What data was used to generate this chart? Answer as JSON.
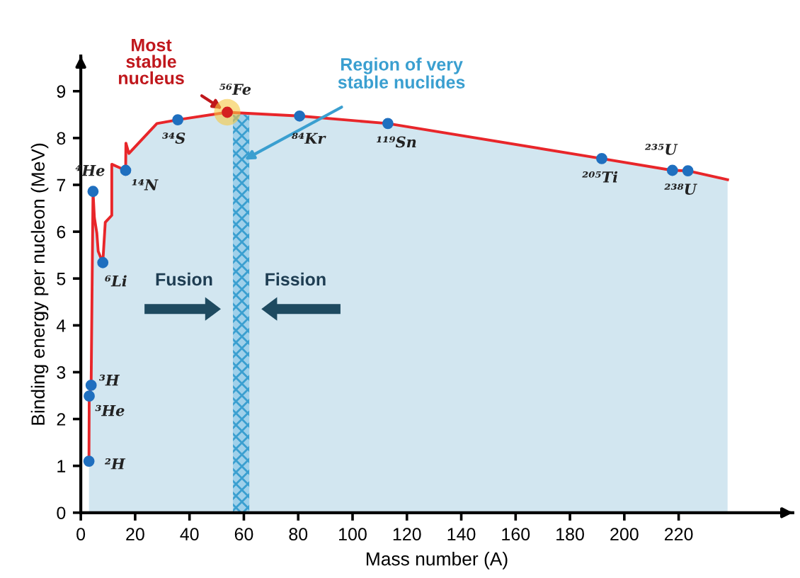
{
  "chart_data": {
    "type": "area",
    "xlabel": "Mass number (A)",
    "ylabel": "Binding energy per nucleon (MeV)",
    "xlim": [
      0,
      262
    ],
    "ylim": [
      0,
      9.75
    ],
    "xticks": [
      0,
      20,
      40,
      60,
      80,
      100,
      120,
      140,
      160,
      180,
      200,
      220
    ],
    "yticks": [
      0,
      1,
      2,
      3,
      4,
      5,
      6,
      7,
      8,
      9
    ],
    "grid": false,
    "series": [
      {
        "color": "#e8262a",
        "marker": "none",
        "x": [
          3.0,
          3.1,
          3.8,
          4.5,
          5.0,
          5.9,
          6.4,
          8.1,
          9.0,
          11.4,
          11.4,
          13.7,
          16.5,
          16.6,
          17.7,
          28,
          35.7,
          53.9,
          80.5,
          113,
          191.7,
          217.7,
          223.4,
          238
        ],
        "values": [
          1.1,
          2.49,
          2.72,
          6.86,
          6.3,
          5.97,
          5.58,
          5.34,
          6.2,
          6.35,
          7.44,
          7.38,
          7.31,
          7.89,
          7.67,
          8.31,
          8.39,
          8.55,
          8.47,
          8.31,
          7.56,
          7.31,
          7.3,
          7.11
        ]
      },
      {
        "type": "scatter",
        "marker": "circle",
        "color": "#1f6fbf",
        "colors": [
          null,
          null,
          null,
          null,
          null,
          null,
          null,
          "#d42020",
          null,
          null,
          null,
          null,
          null
        ],
        "x": [
          3.0,
          3.1,
          3.8,
          4.5,
          8.1,
          16.5,
          35.7,
          53.9,
          80.5,
          113,
          191.7,
          217.7,
          223.4
        ],
        "values": [
          1.1,
          2.49,
          2.72,
          6.86,
          5.34,
          7.31,
          8.39,
          8.55,
          8.47,
          8.31,
          7.56,
          7.31,
          7.3
        ]
      }
    ],
    "bands": [
      {
        "axis": "x",
        "from": 56,
        "to": 62,
        "label": "Region of very\nstable nuclides",
        "color": "#3a9fd0"
      }
    ],
    "annotations": [
      {
        "text": "²H",
        "x": 3.0,
        "y": 1.1
      },
      {
        "text": "³He",
        "x": 3.1,
        "y": 2.49
      },
      {
        "text": "³H",
        "x": 3.8,
        "y": 2.72
      },
      {
        "text": "⁴He",
        "x": 4.5,
        "y": 6.86
      },
      {
        "text": "⁶Li",
        "x": 8.1,
        "y": 5.34
      },
      {
        "text": "¹⁴N",
        "x": 16.5,
        "y": 7.31
      },
      {
        "text": "³⁴S",
        "x": 35.7,
        "y": 8.39
      },
      {
        "text": "⁵⁶Fe",
        "x": 53.9,
        "y": 8.55
      },
      {
        "text": "⁸⁴Kr",
        "x": 80.5,
        "y": 8.47
      },
      {
        "text": "¹¹⁹Sn",
        "x": 113,
        "y": 8.31
      },
      {
        "text": "²⁰⁵Ti",
        "x": 191.7,
        "y": 7.56
      },
      {
        "text": "²³⁵U",
        "x": 217.7,
        "y": 7.31
      },
      {
        "text": "²³⁸U",
        "x": 223.4,
        "y": 7.3
      },
      {
        "text": "Most\nstable\nnucleus",
        "x": 53.9,
        "y": 8.55
      },
      "Fusion",
      "Fission"
    ]
  }
}
